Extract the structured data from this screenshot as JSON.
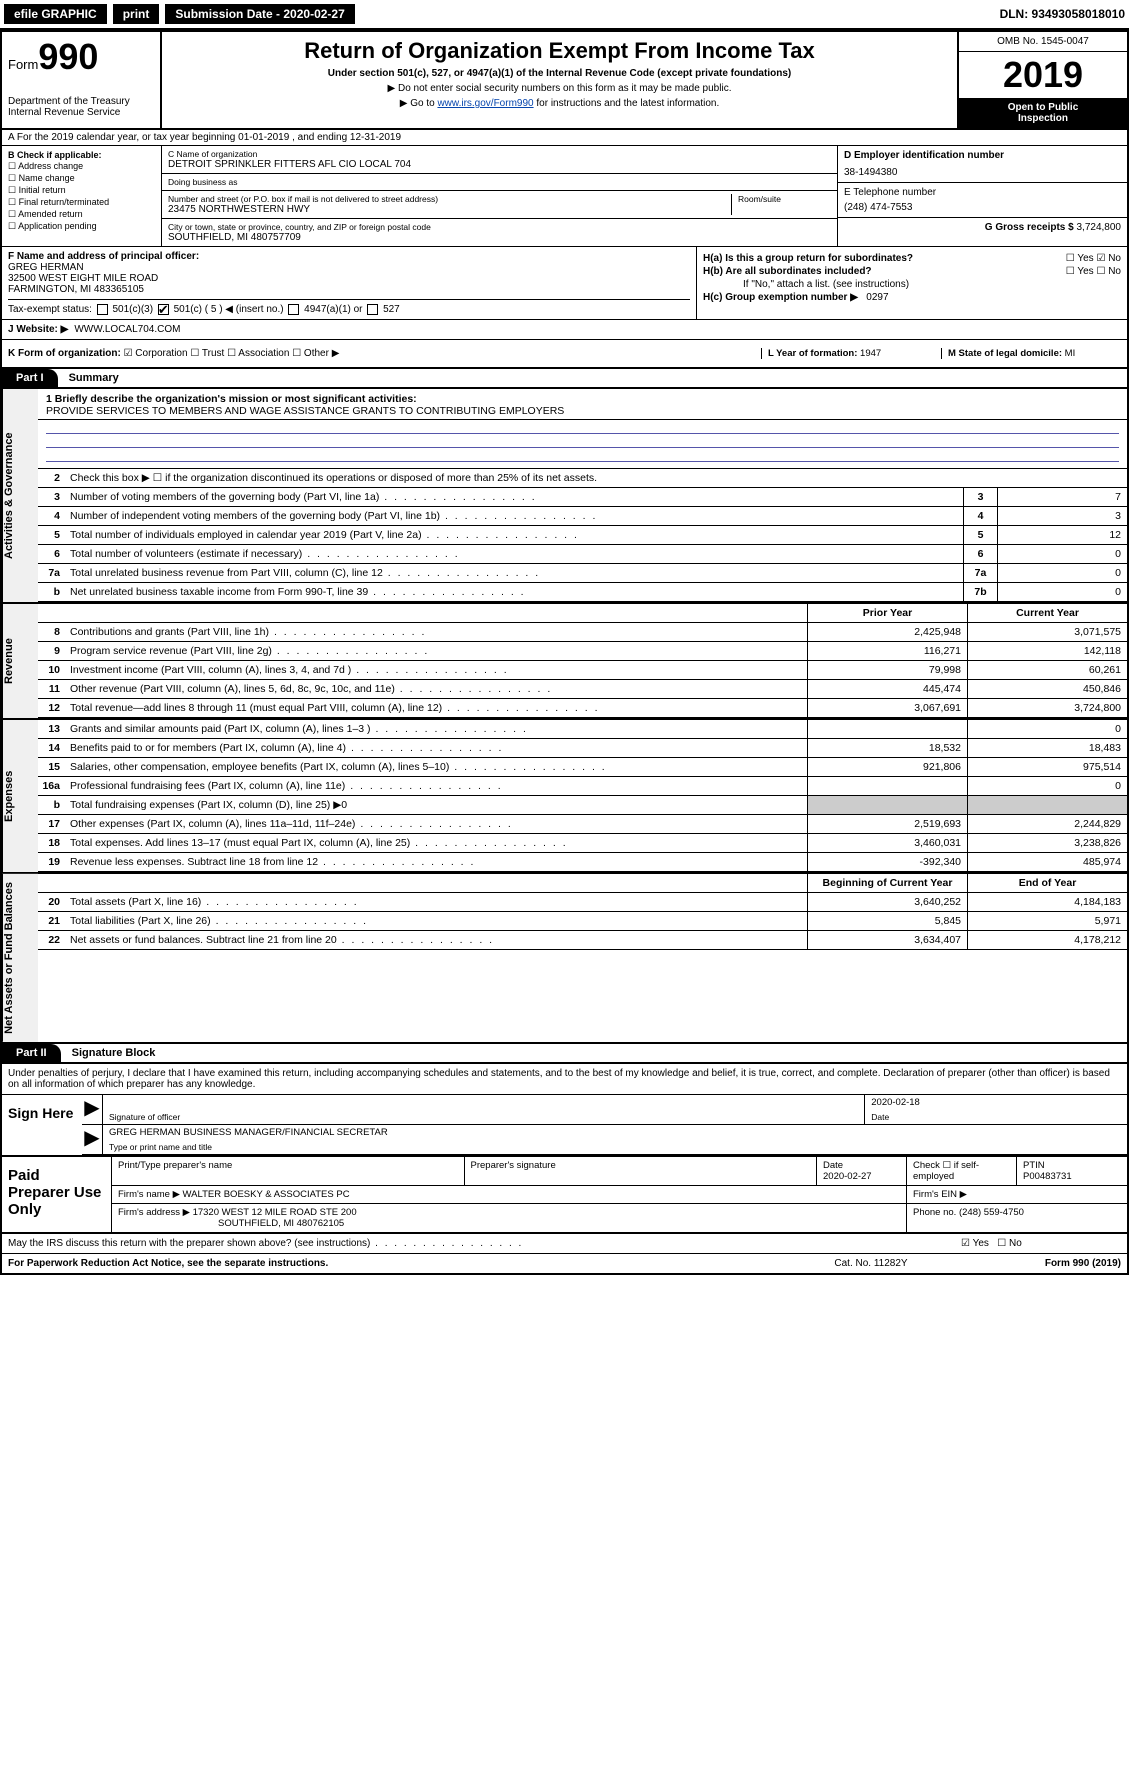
{
  "colors": {
    "black": "#000000",
    "white": "#ffffff",
    "link": "#0645ad",
    "line": "#5555aa",
    "sidebar_bg": "#f0f0f0"
  },
  "topbar": {
    "efile": "efile GRAPHIC",
    "print": "print",
    "subdate_label": "Submission Date - 2020-02-27",
    "dln": "DLN: 93493058018010"
  },
  "header": {
    "form_label": "Form",
    "form_no": "990",
    "dept": "Department of the Treasury",
    "irs": "Internal Revenue Service",
    "title": "Return of Organization Exempt From Income Tax",
    "sub1": "Under section 501(c), 527, or 4947(a)(1) of the Internal Revenue Code (except private foundations)",
    "sub2": "▶ Do not enter social security numbers on this form as it may be made public.",
    "sub3_pre": "▶ Go to ",
    "sub3_link": "www.irs.gov/Form990",
    "sub3_post": " for instructions and the latest information.",
    "omb": "OMB No. 1545-0047",
    "year": "2019",
    "inspect1": "Open to Public",
    "inspect2": "Inspection"
  },
  "rowA": {
    "text": "A For the 2019 calendar year, or tax year beginning 01-01-2019   , and ending 12-31-2019"
  },
  "colB": {
    "label": "B Check if applicable:",
    "opts": [
      "☐ Address change",
      "☐ Name change",
      "☐ Initial return",
      "☐ Final return/terminated",
      "☐ Amended return",
      "☐ Application pending"
    ]
  },
  "colC": {
    "name_label": "C Name of organization",
    "name": "DETROIT SPRINKLER FITTERS AFL CIO LOCAL 704",
    "dba_label": "Doing business as",
    "dba": "",
    "addr_label": "Number and street (or P.O. box if mail is not delivered to street address)",
    "room_label": "Room/suite",
    "addr": "23475 NORTHWESTERN HWY",
    "city_label": "City or town, state or province, country, and ZIP or foreign postal code",
    "city": "SOUTHFIELD, MI  480757709"
  },
  "colD": {
    "ein_label": "D Employer identification number",
    "ein": "38-1494380",
    "phone_label": "E Telephone number",
    "phone": "(248) 474-7553",
    "gross_label": "G Gross receipts $",
    "gross": "3,724,800"
  },
  "rowF": {
    "label": "F Name and address of principal officer:",
    "name": "GREG HERMAN",
    "addr1": "32500 WEST EIGHT MILE ROAD",
    "addr2": "FARMINGTON, MI  483365105"
  },
  "rowH": {
    "a": "H(a)  Is this a group return for subordinates?",
    "a_yes": "☐ Yes",
    "a_no": "☑ No",
    "b": "H(b)  Are all subordinates included?",
    "b_yes": "☐ Yes",
    "b_no": "☐ No",
    "b_note": "If \"No,\" attach a list. (see instructions)",
    "c": "H(c)  Group exemption number ▶",
    "c_val": "0297"
  },
  "rowI": {
    "label": "Tax-exempt status:",
    "opt1": "501(c)(3)",
    "opt2": "501(c) ( 5 ) ◀ (insert no.)",
    "opt3": "4947(a)(1) or",
    "opt4": "527"
  },
  "rowJ": {
    "label": "J   Website: ▶",
    "val": "WWW.LOCAL704.COM"
  },
  "rowK": {
    "label": "K Form of organization:",
    "opts": "☑ Corporation  ☐ Trust  ☐ Association  ☐ Other ▶",
    "l_label": "L Year of formation:",
    "l_val": "1947",
    "m_label": "M State of legal domicile:",
    "m_val": "MI"
  },
  "part1": {
    "hdr": "Part I",
    "title": "Summary",
    "q1_label": "1  Briefly describe the organization's mission or most significant activities:",
    "q1_val": "PROVIDE SERVICES TO MEMBERS AND WAGE ASSISTANCE GRANTS TO CONTRIBUTING EMPLOYERS",
    "q2": "Check this box ▶ ☐  if the organization discontinued its operations or disposed of more than 25% of its net assets.",
    "sidebar1": "Activities & Governance",
    "sidebar2": "Revenue",
    "sidebar3": "Expenses",
    "sidebar4": "Net Assets or Fund Balances",
    "rows_gov": [
      {
        "n": "3",
        "t": "Number of voting members of the governing body (Part VI, line 1a)",
        "box": "3",
        "v": "7"
      },
      {
        "n": "4",
        "t": "Number of independent voting members of the governing body (Part VI, line 1b)",
        "box": "4",
        "v": "3"
      },
      {
        "n": "5",
        "t": "Total number of individuals employed in calendar year 2019 (Part V, line 2a)",
        "box": "5",
        "v": "12"
      },
      {
        "n": "6",
        "t": "Total number of volunteers (estimate if necessary)",
        "box": "6",
        "v": "0"
      },
      {
        "n": "7a",
        "t": "Total unrelated business revenue from Part VIII, column (C), line 12",
        "box": "7a",
        "v": "0"
      },
      {
        "n": "b",
        "t": "Net unrelated business taxable income from Form 990-T, line 39",
        "box": "7b",
        "v": "0"
      }
    ],
    "col_prior": "Prior Year",
    "col_curr": "Current Year",
    "rows_rev": [
      {
        "n": "8",
        "t": "Contributions and grants (Part VIII, line 1h)",
        "p": "2,425,948",
        "c": "3,071,575"
      },
      {
        "n": "9",
        "t": "Program service revenue (Part VIII, line 2g)",
        "p": "116,271",
        "c": "142,118"
      },
      {
        "n": "10",
        "t": "Investment income (Part VIII, column (A), lines 3, 4, and 7d )",
        "p": "79,998",
        "c": "60,261"
      },
      {
        "n": "11",
        "t": "Other revenue (Part VIII, column (A), lines 5, 6d, 8c, 9c, 10c, and 11e)",
        "p": "445,474",
        "c": "450,846"
      },
      {
        "n": "12",
        "t": "Total revenue—add lines 8 through 11 (must equal Part VIII, column (A), line 12)",
        "p": "3,067,691",
        "c": "3,724,800"
      }
    ],
    "rows_exp": [
      {
        "n": "13",
        "t": "Grants and similar amounts paid (Part IX, column (A), lines 1–3 )",
        "p": "",
        "c": "0"
      },
      {
        "n": "14",
        "t": "Benefits paid to or for members (Part IX, column (A), line 4)",
        "p": "18,532",
        "c": "18,483"
      },
      {
        "n": "15",
        "t": "Salaries, other compensation, employee benefits (Part IX, column (A), lines 5–10)",
        "p": "921,806",
        "c": "975,514"
      },
      {
        "n": "16a",
        "t": "Professional fundraising fees (Part IX, column (A), line 11e)",
        "p": "",
        "c": "0"
      },
      {
        "n": "b",
        "t": "Total fundraising expenses (Part IX, column (D), line 25) ▶0",
        "p": "—",
        "c": "—"
      },
      {
        "n": "17",
        "t": "Other expenses (Part IX, column (A), lines 11a–11d, 11f–24e)",
        "p": "2,519,693",
        "c": "2,244,829"
      },
      {
        "n": "18",
        "t": "Total expenses. Add lines 13–17 (must equal Part IX, column (A), line 25)",
        "p": "3,460,031",
        "c": "3,238,826"
      },
      {
        "n": "19",
        "t": "Revenue less expenses. Subtract line 18 from line 12",
        "p": "-392,340",
        "c": "485,974"
      }
    ],
    "col_beg": "Beginning of Current Year",
    "col_end": "End of Year",
    "rows_net": [
      {
        "n": "20",
        "t": "Total assets (Part X, line 16)",
        "p": "3,640,252",
        "c": "4,184,183"
      },
      {
        "n": "21",
        "t": "Total liabilities (Part X, line 26)",
        "p": "5,845",
        "c": "5,971"
      },
      {
        "n": "22",
        "t": "Net assets or fund balances. Subtract line 21 from line 20",
        "p": "3,634,407",
        "c": "4,178,212"
      }
    ]
  },
  "part2": {
    "hdr": "Part II",
    "title": "Signature Block",
    "pre": "Under penalties of perjury, I declare that I have examined this return, including accompanying schedules and statements, and to the best of my knowledge and belief, it is true, correct, and complete. Declaration of preparer (other than officer) is based on all information of which preparer has any knowledge.",
    "sign_here": "Sign Here",
    "sig_date": "2020-02-18",
    "sig_date_lbl": "Date",
    "sig_officer_lbl": "Signature of officer",
    "sig_name": "GREG HERMAN  BUSINESS MANAGER/FINANCIAL SECRETAR",
    "sig_name_lbl": "Type or print name and title",
    "paid": "Paid Preparer Use Only",
    "prep_hdr": [
      "Print/Type preparer's name",
      "Preparer's signature",
      "Date",
      "",
      "PTIN"
    ],
    "prep_date": "2020-02-27",
    "prep_check": "Check ☐ if self-employed",
    "prep_ptin": "P00483731",
    "firm_name_lbl": "Firm's name    ▶",
    "firm_name": "WALTER BOESKY & ASSOCIATES PC",
    "firm_ein_lbl": "Firm's EIN ▶",
    "firm_addr_lbl": "Firm's address ▶",
    "firm_addr1": "17320 WEST 12 MILE ROAD STE 200",
    "firm_addr2": "SOUTHFIELD, MI  480762105",
    "firm_phone_lbl": "Phone no.",
    "firm_phone": "(248) 559-4750"
  },
  "footer": {
    "discuss": "May the IRS discuss this return with the preparer shown above? (see instructions)",
    "yes": "☑ Yes",
    "no": "☐ No",
    "pra": "For Paperwork Reduction Act Notice, see the separate instructions.",
    "cat": "Cat. No. 11282Y",
    "form": "Form 990 (2019)"
  }
}
